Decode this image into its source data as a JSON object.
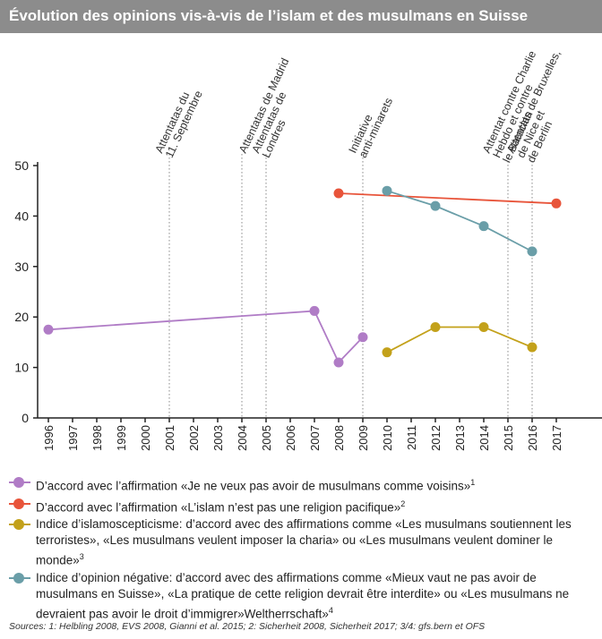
{
  "title": "Évolution des opinions vis-à-vis de l’islam et des musulmans en Suisse",
  "colors": {
    "title_bg": "#8c8c8c",
    "purple": "#b07cc6",
    "red": "#e8543a",
    "olive": "#c3a11a",
    "teal": "#6a9ea8"
  },
  "chart_data": {
    "type": "line",
    "x_ticks": [
      "1996",
      "1997",
      "1998",
      "1999",
      "2000",
      "2001",
      "2002",
      "2003",
      "2004",
      "2005",
      "2006",
      "2007",
      "2008",
      "2009",
      "2010",
      "2011",
      "2012",
      "2013",
      "2014",
      "2015",
      "2016",
      "2017"
    ],
    "y_ticks": [
      "0",
      "10",
      "20",
      "30",
      "40",
      "50"
    ],
    "ylim": [
      0,
      50
    ],
    "xlim": [
      1996,
      2017
    ],
    "grid": "dotted vertical lines at events",
    "events": [
      {
        "year": 2001,
        "label": "Attentatas du 11. Septembre"
      },
      {
        "year": 2004,
        "label": "Attentatas de Madrid"
      },
      {
        "year": 2005,
        "label": "Attentatas de Londres"
      },
      {
        "year": 2009,
        "label": "Initiative anti-minarets"
      },
      {
        "year": 2015,
        "label": "Attentat contre Charlie Hebdo et contre le Bataclan"
      },
      {
        "year": 2016,
        "label": "Attentats de Bruxelles, de Nice et de Berlin"
      }
    ],
    "series": [
      {
        "color_key": "purple",
        "points": [
          [
            1996,
            17.5
          ],
          [
            2007,
            21.2
          ],
          [
            2008,
            11
          ],
          [
            2009,
            16
          ]
        ]
      },
      {
        "color_key": "red",
        "points": [
          [
            2008,
            44.5
          ],
          [
            2017,
            42.5
          ]
        ]
      },
      {
        "color_key": "olive",
        "points": [
          [
            2010,
            13
          ],
          [
            2012,
            18
          ],
          [
            2014,
            18
          ],
          [
            2016,
            14
          ]
        ]
      },
      {
        "color_key": "teal",
        "points": [
          [
            2010,
            45
          ],
          [
            2012,
            42
          ],
          [
            2014,
            38
          ],
          [
            2016,
            33
          ]
        ]
      }
    ]
  },
  "legend": [
    {
      "color_key": "purple",
      "text": "D’accord avec l’affirmation «Je ne veux pas avoir de musulmans comme voisins»",
      "note": "1"
    },
    {
      "color_key": "red",
      "text": "D’accord avec l’affirmation «L’islam n’est pas une religion pacifique»",
      "note": "2"
    },
    {
      "color_key": "olive",
      "text": "Indice d’islamoscepticisme: d’accord avec des affirmations comme «Les musulmans soutiennent les terroristes», «Les musulmans veulent imposer la charia» ou «Les musulmans veulent dominer le monde»",
      "note": "3"
    },
    {
      "color_key": "teal",
      "text": "Indice d’opinion négative: d’accord avec des affirmations comme «Mieux vaut ne pas avoir de musulmans en Suisse», «La pratique de cette religion devrait être interdite» ou «Les musulmans ne devraient pas avoir le droit d’immigrer»Weltherrschaft»",
      "note": "4"
    }
  ],
  "sources": "Sources: 1: Helbling 2008, EVS 2008, Gianni et al. 2015; 2: Sicherheit 2008, Sicherheit 2017; 3/4: gfs.bern et OFS"
}
